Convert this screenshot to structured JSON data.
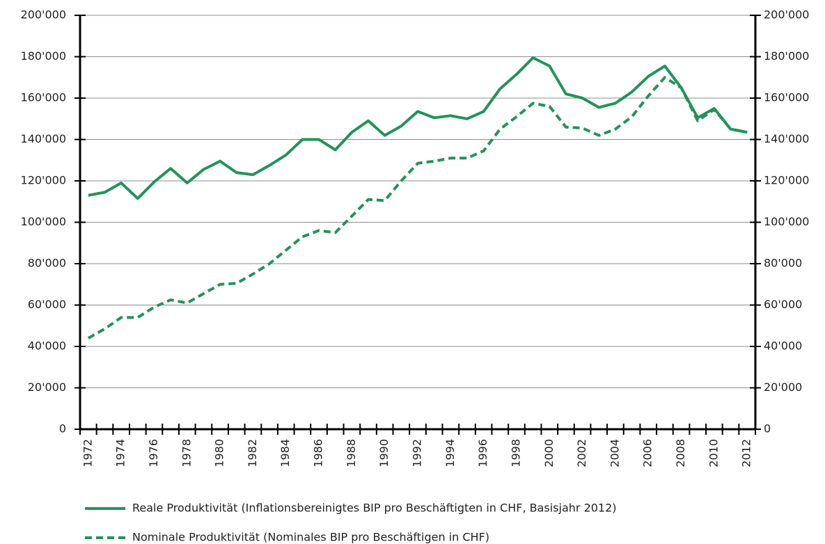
{
  "chart_data": {
    "type": "line",
    "categories": [
      "1972",
      null,
      "1974",
      null,
      "1976",
      null,
      "1978",
      null,
      "1980",
      null,
      "1982",
      null,
      "1984",
      null,
      "1986",
      null,
      "1988",
      null,
      "1990",
      null,
      "1992",
      null,
      "1994",
      null,
      "1996",
      null,
      "1998",
      null,
      "2000",
      null,
      "2002",
      null,
      "2004",
      null,
      "2006",
      null,
      "2008",
      null,
      "2010",
      null,
      "2012"
    ],
    "series": [
      {
        "name": "Reale Produktivität (Inflationsbereinigtes BIP pro Beschäftigten in CHF, Basisjahr 2012)",
        "color": "#22935a",
        "dash": false,
        "values": [
          113000,
          114500,
          119000,
          111500,
          119500,
          126000,
          119000,
          125500,
          129500,
          124000,
          123000,
          127500,
          132500,
          140000,
          140000,
          135000,
          143500,
          149000,
          142000,
          146500,
          153500,
          150500,
          151500,
          150000,
          153500,
          164500,
          171500,
          179500,
          175500,
          162000,
          160000,
          155500,
          157500,
          163000,
          170500,
          175500,
          165000,
          150500,
          155000,
          145000,
          143500
        ]
      },
      {
        "name": "Nominale Produktivität (Nominales BIP pro Beschäftigen in CHF)",
        "color": "#22935a",
        "dash": true,
        "values": [
          44000,
          48500,
          54000,
          54000,
          59000,
          62500,
          61000,
          65500,
          70000,
          70500,
          75000,
          80000,
          86500,
          93000,
          96000,
          95000,
          103000,
          111000,
          110500,
          120000,
          128500,
          129500,
          131000,
          131000,
          134500,
          145000,
          151000,
          157500,
          156000,
          146000,
          145500,
          142000,
          145000,
          151000,
          161000,
          170000,
          165000,
          149000,
          154500,
          145000,
          143500
        ]
      }
    ],
    "ylim": [
      0,
      200000
    ],
    "yticks": [
      0,
      {
        "value": 20000,
        "label": "20'000"
      },
      {
        "value": 40000,
        "label": "40'000"
      },
      {
        "value": 60000,
        "label": "60'000"
      },
      {
        "value": 80000,
        "label": "80'000"
      },
      {
        "value": 100000,
        "label": "100'000"
      },
      {
        "value": 120000,
        "label": "120'000"
      },
      {
        "value": 140000,
        "label": "140'000"
      },
      {
        "value": 160000,
        "label": "160'000"
      },
      {
        "value": 180000,
        "label": "180'000"
      },
      {
        "value": 200000,
        "label": "200'000"
      }
    ],
    "y2lim": [
      0,
      200000
    ],
    "y2ticks": [
      0,
      {
        "value": 20000,
        "label": "20'000"
      },
      {
        "value": 40000,
        "label": "40'000"
      },
      {
        "value": 60000,
        "label": "60'000"
      },
      {
        "value": 80000,
        "label": "80'000"
      },
      {
        "value": 100000,
        "label": "100'000"
      },
      {
        "value": 120000,
        "label": "120'000"
      },
      {
        "value": 140000,
        "label": "140'000"
      },
      {
        "value": 160000,
        "label": "160'000"
      },
      {
        "value": 180000,
        "label": "180'000"
      },
      {
        "value": 200000,
        "label": "200'000"
      }
    ],
    "grid": true,
    "legend": "bottom"
  }
}
